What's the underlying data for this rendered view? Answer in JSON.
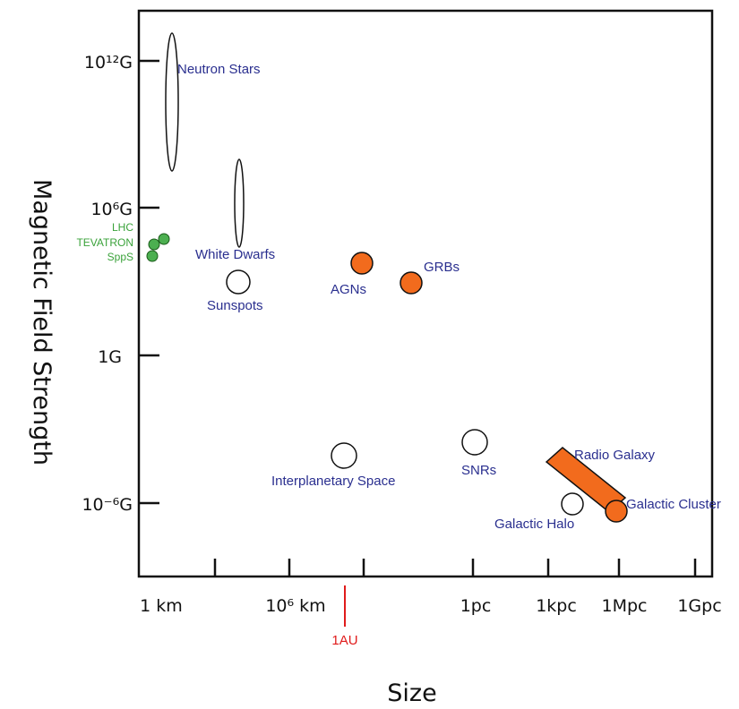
{
  "chart_data": {
    "type": "scatter",
    "xlabel": "Size",
    "ylabel": "Magnetic Field Strength",
    "x_ticks": [
      "1 km",
      "10⁶ km",
      "1pc",
      "1kpc",
      "1Mpc",
      "1Gpc"
    ],
    "y_ticks": [
      "10¹²G",
      "10⁶G",
      "1G",
      "10⁻⁶G"
    ],
    "marker": {
      "label": "1AU"
    },
    "accelerators": [
      "LHC",
      "TEVATRON",
      "SppS"
    ],
    "objects": [
      {
        "label": "Neutron Stars",
        "shape": "ellipse",
        "fill": "#ffffff"
      },
      {
        "label": "White Dwarfs",
        "shape": "ellipse",
        "fill": "#ffffff"
      },
      {
        "label": "Sunspots",
        "shape": "circle",
        "fill": "#ffffff"
      },
      {
        "label": "AGNs",
        "shape": "circle",
        "fill": "#f26b1d"
      },
      {
        "label": "GRBs",
        "shape": "circle",
        "fill": "#f26b1d"
      },
      {
        "label": "Interplanetary Space",
        "shape": "circle",
        "fill": "#ffffff"
      },
      {
        "label": "SNRs",
        "shape": "circle",
        "fill": "#ffffff"
      },
      {
        "label": "Radio Galaxy",
        "shape": "bar",
        "fill": "#f26b1d"
      },
      {
        "label": "Galactic Halo",
        "shape": "circle",
        "fill": "#ffffff"
      },
      {
        "label": "Galactic Cluster",
        "shape": "circle",
        "fill": "#f26b1d"
      }
    ],
    "colors": {
      "label": "#2a2f8f",
      "accelerator": "#3aa23a",
      "orange": "#f26b1d",
      "au": "#e01b1b"
    }
  }
}
